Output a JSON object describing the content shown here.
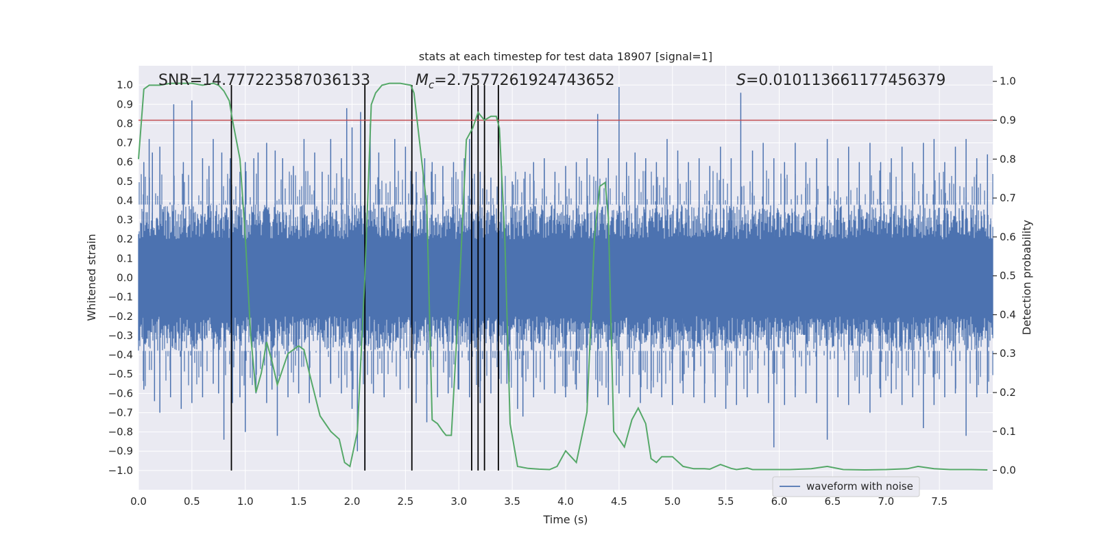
{
  "chart_data": {
    "type": "line",
    "title": "stats at each timestep for test data 18907 [signal=1]",
    "xlabel": "Time (s)",
    "ylabel": "Whitened strain",
    "y2label": "Detection probability",
    "xlim": [
      0.0,
      8.0
    ],
    "ylim": [
      -1.1,
      1.1
    ],
    "y2lim": [
      -0.05,
      1.04
    ],
    "xticks": [
      "0.0",
      "0.5",
      "1.0",
      "1.5",
      "2.0",
      "2.5",
      "3.0",
      "3.5",
      "4.0",
      "4.5",
      "5.0",
      "5.5",
      "6.0",
      "6.5",
      "7.0",
      "7.5"
    ],
    "yticks": [
      "−1.0",
      "−0.9",
      "−0.8",
      "−0.7",
      "−0.6",
      "−0.5",
      "−0.4",
      "−0.3",
      "−0.2",
      "−0.1",
      "0.0",
      "0.1",
      "0.2",
      "0.3",
      "0.4",
      "0.5",
      "0.6",
      "0.7",
      "0.8",
      "0.9",
      "1.0"
    ],
    "y2ticks": [
      "0.0",
      "0.1",
      "0.2",
      "0.3",
      "0.4",
      "0.5",
      "0.6",
      "0.7",
      "0.8",
      "0.9",
      "1.0"
    ],
    "grid": true,
    "legend_position": "lower-right",
    "annotations": {
      "snr": "SNR=14.777223587036133",
      "mc": "=2.7577261924743652",
      "mc_symbol": "M",
      "mc_sub": "c",
      "s": "=0.010113661177456379",
      "s_symbol": "S"
    },
    "threshold": {
      "axis": "y2",
      "value": 0.9,
      "color": "#c44e52"
    },
    "vertical_lines": {
      "color": "#000000",
      "x": [
        0.87,
        2.12,
        2.56,
        3.12,
        3.18,
        3.24,
        3.37
      ]
    },
    "series": [
      {
        "name": "waveform with noise",
        "axis": "y",
        "color": "#4c72b0",
        "peaks": {
          "x": [
            0.05,
            0.1,
            0.13,
            0.2,
            0.33,
            0.42,
            0.5,
            0.6,
            0.66,
            0.7,
            0.78,
            0.86,
            0.95,
            1.0,
            1.08,
            1.12,
            1.2,
            1.28,
            1.35,
            1.45,
            1.55,
            1.65,
            1.72,
            1.8,
            1.9,
            1.95,
            2.0,
            2.08,
            2.12,
            2.17,
            2.25,
            2.4,
            2.5,
            2.6,
            2.68,
            2.75,
            2.85,
            2.95,
            3.05,
            3.1,
            3.2,
            3.3,
            3.4,
            3.5,
            3.62,
            3.7,
            3.8,
            3.9,
            4.0,
            4.1,
            4.2,
            4.3,
            4.4,
            4.5,
            4.57,
            4.65,
            4.75,
            4.85,
            4.95,
            5.05,
            5.15,
            5.25,
            5.35,
            5.45,
            5.55,
            5.64,
            5.75,
            5.85,
            5.95,
            6.05,
            6.15,
            6.25,
            6.35,
            6.45,
            6.55,
            6.65,
            6.75,
            6.85,
            6.95,
            7.05,
            7.15,
            7.25,
            7.35,
            7.45,
            7.55,
            7.65,
            7.75,
            7.85,
            7.95
          ],
          "y": [
            0.6,
            0.72,
            0.65,
            0.68,
            0.9,
            0.6,
            0.92,
            0.62,
            0.58,
            0.72,
            0.65,
            0.62,
            0.55,
            0.6,
            0.62,
            0.65,
            0.7,
            0.66,
            0.62,
            0.58,
            0.72,
            0.65,
            0.55,
            0.72,
            0.62,
            0.88,
            0.78,
            0.86,
            0.6,
            0.8,
            0.65,
            0.72,
            0.68,
            0.55,
            0.62,
            0.6,
            0.58,
            0.6,
            0.62,
            0.72,
            0.55,
            0.52,
            0.58,
            0.5,
            0.55,
            0.6,
            0.62,
            0.55,
            0.58,
            0.6,
            0.62,
            0.85,
            0.62,
            0.99,
            0.6,
            0.65,
            0.62,
            0.6,
            0.72,
            0.66,
            0.6,
            0.62,
            0.58,
            0.68,
            0.62,
            0.96,
            0.66,
            0.7,
            0.62,
            0.6,
            0.7,
            0.6,
            0.62,
            0.72,
            0.62,
            0.68,
            0.6,
            0.7,
            0.6,
            0.62,
            0.68,
            0.6,
            0.7,
            0.72,
            0.6,
            0.68,
            0.72,
            0.62,
            0.64
          ]
        },
        "troughs": {
          "x": [
            0.05,
            0.15,
            0.2,
            0.3,
            0.4,
            0.5,
            0.6,
            0.7,
            0.75,
            0.8,
            0.88,
            0.95,
            1.0,
            1.1,
            1.2,
            1.25,
            1.3,
            1.4,
            1.5,
            1.6,
            1.7,
            1.8,
            1.9,
            2.0,
            2.05,
            2.12,
            2.2,
            2.3,
            2.45,
            2.6,
            2.7,
            2.8,
            2.9,
            3.0,
            3.1,
            3.2,
            3.3,
            3.37,
            3.45,
            3.55,
            3.6,
            3.7,
            3.8,
            3.9,
            4.0,
            4.1,
            4.2,
            4.3,
            4.4,
            4.5,
            4.6,
            4.7,
            4.8,
            4.9,
            5.0,
            5.1,
            5.2,
            5.3,
            5.4,
            5.5,
            5.6,
            5.7,
            5.8,
            5.9,
            5.95,
            6.05,
            6.15,
            6.25,
            6.35,
            6.45,
            6.55,
            6.65,
            6.75,
            6.85,
            6.95,
            7.05,
            7.15,
            7.25,
            7.35,
            7.45,
            7.55,
            7.65,
            7.75,
            7.85,
            7.95
          ],
          "y": [
            -0.58,
            -0.64,
            -0.7,
            -0.62,
            -0.68,
            -0.65,
            -0.62,
            -0.55,
            -0.6,
            -0.84,
            -0.65,
            -0.62,
            -0.8,
            -0.6,
            -0.65,
            -0.58,
            -0.82,
            -0.62,
            -0.6,
            -0.65,
            -0.62,
            -0.55,
            -0.6,
            -0.68,
            -0.9,
            -1.0,
            -0.6,
            -0.62,
            -0.58,
            -0.65,
            -0.75,
            -0.62,
            -0.6,
            -0.58,
            -0.62,
            -0.65,
            -0.6,
            -0.7,
            -0.55,
            -0.68,
            -0.72,
            -0.62,
            -0.58,
            -0.6,
            -0.62,
            -0.58,
            -0.65,
            -0.62,
            -0.66,
            -0.6,
            -0.62,
            -0.65,
            -0.6,
            -0.62,
            -0.66,
            -0.6,
            -0.62,
            -0.65,
            -0.62,
            -0.68,
            -0.66,
            -0.62,
            -0.6,
            -0.65,
            -0.88,
            -0.66,
            -0.62,
            -0.6,
            -0.65,
            -0.84,
            -0.62,
            -0.66,
            -0.6,
            -0.7,
            -0.62,
            -0.6,
            -0.66,
            -0.62,
            -0.78,
            -0.66,
            -0.62,
            -0.6,
            -0.82,
            -0.62,
            -0.6
          ]
        }
      },
      {
        "name": "",
        "axis": "y2",
        "color": "#55a868",
        "x": [
          0.0,
          0.05,
          0.1,
          0.2,
          0.3,
          0.4,
          0.5,
          0.6,
          0.7,
          0.75,
          0.8,
          0.85,
          0.88,
          0.95,
          1.0,
          1.05,
          1.1,
          1.15,
          1.2,
          1.25,
          1.3,
          1.4,
          1.5,
          1.55,
          1.6,
          1.7,
          1.75,
          1.8,
          1.88,
          1.93,
          1.98,
          2.05,
          2.12,
          2.18,
          2.22,
          2.28,
          2.35,
          2.45,
          2.55,
          2.58,
          2.63,
          2.7,
          2.75,
          2.8,
          2.85,
          2.88,
          2.93,
          3.0,
          3.07,
          3.13,
          3.18,
          3.24,
          3.3,
          3.35,
          3.38,
          3.43,
          3.48,
          3.55,
          3.65,
          3.75,
          3.85,
          3.92,
          4.0,
          4.05,
          4.1,
          4.2,
          4.27,
          4.32,
          4.37,
          4.4,
          4.45,
          4.55,
          4.62,
          4.68,
          4.75,
          4.8,
          4.85,
          4.9,
          5.0,
          5.1,
          5.2,
          5.3,
          5.35,
          5.45,
          5.55,
          5.6,
          5.7,
          5.75,
          5.85,
          5.95,
          6.1,
          6.3,
          6.45,
          6.6,
          6.8,
          7.0,
          7.2,
          7.3,
          7.45,
          7.6,
          7.8,
          7.95
        ],
        "y": [
          0.8,
          0.98,
          0.99,
          0.99,
          0.995,
          0.995,
          0.995,
          0.99,
          0.995,
          0.99,
          0.975,
          0.95,
          0.9,
          0.8,
          0.6,
          0.35,
          0.2,
          0.25,
          0.33,
          0.28,
          0.22,
          0.3,
          0.32,
          0.31,
          0.25,
          0.14,
          0.12,
          0.1,
          0.08,
          0.02,
          0.01,
          0.1,
          0.5,
          0.94,
          0.97,
          0.99,
          0.995,
          0.995,
          0.99,
          0.97,
          0.85,
          0.68,
          0.13,
          0.12,
          0.1,
          0.09,
          0.09,
          0.44,
          0.85,
          0.88,
          0.92,
          0.9,
          0.91,
          0.91,
          0.88,
          0.6,
          0.12,
          0.01,
          0.005,
          0.003,
          0.002,
          0.01,
          0.05,
          0.035,
          0.02,
          0.15,
          0.6,
          0.73,
          0.74,
          0.65,
          0.1,
          0.06,
          0.13,
          0.16,
          0.12,
          0.03,
          0.02,
          0.035,
          0.035,
          0.01,
          0.004,
          0.004,
          0.003,
          0.015,
          0.005,
          0.002,
          0.006,
          0.002,
          0.002,
          0.002,
          0.002,
          0.004,
          0.01,
          0.002,
          0.001,
          0.002,
          0.004,
          0.01,
          0.004,
          0.002,
          0.002,
          0.001
        ]
      }
    ]
  }
}
